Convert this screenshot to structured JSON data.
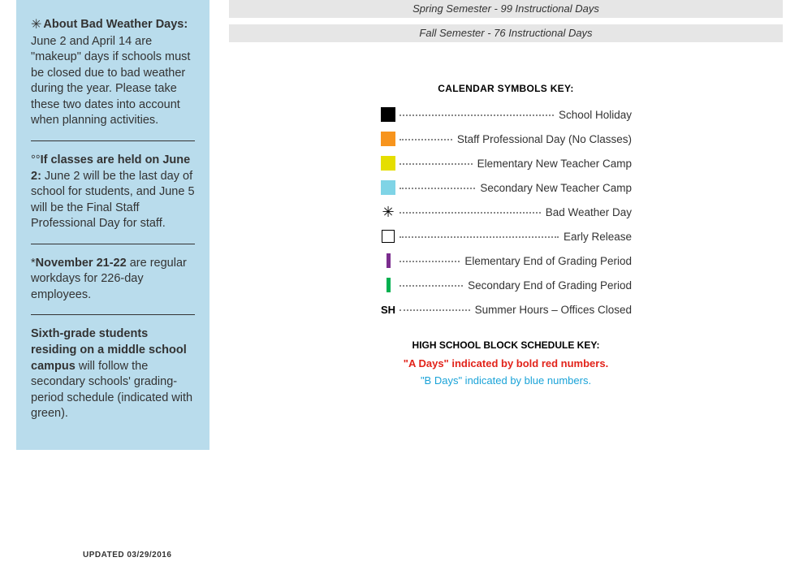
{
  "sidebar": {
    "notes": [
      {
        "icon": "snowflake",
        "lead": "About Bad Weather Days:",
        "body": " June 2 and April 14 are \"makeup\" days if schools must be closed due to bad weather during the year. Please take these two dates into account when planning activities."
      },
      {
        "prefix": "°°",
        "lead": "If classes are held on June 2:",
        "body": " June 2 will be the last day of school for students, and June 5 will be the Final Staff Professional Day for staff."
      },
      {
        "prefix": "*",
        "lead": "November 21-22",
        "body": " are regular workdays for 226-day employees."
      },
      {
        "lead": "Sixth-grade students residing on a middle school campus",
        "body": " will follow the secondary schools' grading-period schedule (indicated with green)."
      }
    ]
  },
  "updated_label": "UPDATED  03/29/2016",
  "semesters": [
    "Spring Semester - 99 Instructional Days",
    "Fall Semester - 76 Instructional Days"
  ],
  "key": {
    "title": "CALENDAR SYMBOLS KEY:",
    "items": [
      {
        "type": "swatch",
        "color": "#000000",
        "label": "School Holiday"
      },
      {
        "type": "swatch",
        "color": "#f7941d",
        "label": "Staff Professional Day (No Classes)"
      },
      {
        "type": "swatch",
        "color": "#e5de00",
        "label": "Elementary New Teacher Camp"
      },
      {
        "type": "swatch",
        "color": "#7fd4e6",
        "label": "Secondary New Teacher Camp"
      },
      {
        "type": "snowflake",
        "label": "Bad Weather Day"
      },
      {
        "type": "outline",
        "label": "Early Release"
      },
      {
        "type": "bar",
        "color": "#7b2d8e",
        "label": "Elementary End of Grading Period"
      },
      {
        "type": "bar",
        "color": "#00b050",
        "label": "Secondary End of Grading Period"
      },
      {
        "type": "text",
        "text": "SH",
        "label": "Summer Hours – Offices Closed"
      }
    ]
  },
  "block_key": {
    "title": "HIGH SCHOOL BLOCK SCHEDULE KEY:",
    "a_days": "\"A Days\" indicated by bold red numbers.",
    "b_days": "\"B Days\" indicated by blue numbers.",
    "a_color": "#e2231a",
    "b_color": "#1aa3d8"
  }
}
